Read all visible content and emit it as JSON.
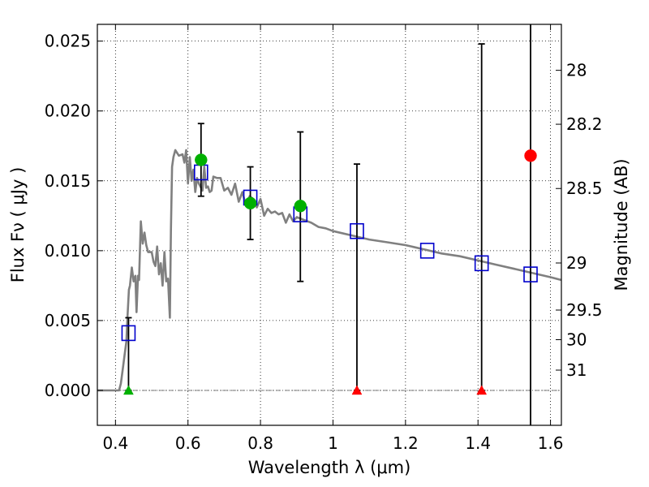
{
  "chart_data": {
    "type": "scatter",
    "xlabel": "Wavelength  λ (μm)",
    "ylabel": "Flux  Fν  ( μJy )",
    "y2label": "Magnitude (AB)",
    "xlim": [
      0.35,
      1.63
    ],
    "ylim": [
      -0.0025,
      0.0262
    ],
    "grid": true,
    "x_ticks": [
      0.4,
      0.6,
      0.8,
      1.0,
      1.2,
      1.4,
      1.6
    ],
    "x_tick_labels": [
      "0.4",
      "0.6",
      "0.8",
      "1",
      "1.2",
      "1.4",
      "1.6"
    ],
    "y_ticks": [
      0.0,
      0.005,
      0.01,
      0.015,
      0.02,
      0.025
    ],
    "y_tick_labels": [
      "0.000",
      "0.005",
      "0.010",
      "0.015",
      "0.020",
      "0.025"
    ],
    "right_ticks": [
      {
        "label": "28",
        "flux": 0.02291
      },
      {
        "label": "28.2",
        "flux": 0.01905
      },
      {
        "label": "28.5",
        "flux": 0.01445
      },
      {
        "label": "29",
        "flux": 0.00912
      },
      {
        "label": "29.5",
        "flux": 0.00575
      },
      {
        "label": "30",
        "flux": 0.00363
      },
      {
        "label": "31",
        "flux": 0.00145
      }
    ],
    "series": [
      {
        "kind": "line",
        "color": "#808080",
        "x": [
          0.35,
          0.41,
          0.415,
          0.42,
          0.425,
          0.43,
          0.433,
          0.437,
          0.44,
          0.445,
          0.45,
          0.455,
          0.458,
          0.462,
          0.465,
          0.47,
          0.475,
          0.48,
          0.485,
          0.49,
          0.5,
          0.505,
          0.51,
          0.515,
          0.52,
          0.525,
          0.53,
          0.535,
          0.54,
          0.545,
          0.55,
          0.553,
          0.556,
          0.56,
          0.565,
          0.575,
          0.585,
          0.59,
          0.595,
          0.6,
          0.605,
          0.61,
          0.615,
          0.62,
          0.625,
          0.63,
          0.64,
          0.645,
          0.65,
          0.655,
          0.66,
          0.665,
          0.67,
          0.68,
          0.69,
          0.7,
          0.71,
          0.72,
          0.73,
          0.74,
          0.75,
          0.76,
          0.77,
          0.78,
          0.79,
          0.8,
          0.81,
          0.82,
          0.83,
          0.84,
          0.85,
          0.86,
          0.87,
          0.88,
          0.89,
          0.9,
          0.92,
          0.94,
          0.96,
          0.98,
          1.0,
          1.05,
          1.1,
          1.15,
          1.2,
          1.25,
          1.3,
          1.35,
          1.4,
          1.45,
          1.5,
          1.55,
          1.6,
          1.63
        ],
        "y": [
          0.0,
          0.0,
          0.0005,
          0.0015,
          0.0025,
          0.0035,
          0.0052,
          0.0072,
          0.0075,
          0.0088,
          0.0078,
          0.0082,
          0.0056,
          0.0082,
          0.0079,
          0.0121,
          0.0105,
          0.0113,
          0.0104,
          0.0099,
          0.0099,
          0.0092,
          0.0089,
          0.0103,
          0.0083,
          0.0091,
          0.0075,
          0.0099,
          0.0078,
          0.008,
          0.0052,
          0.0115,
          0.016,
          0.0167,
          0.0172,
          0.0168,
          0.0169,
          0.0163,
          0.0172,
          0.0148,
          0.0167,
          0.015,
          0.0158,
          0.0142,
          0.0152,
          0.0148,
          0.0143,
          0.016,
          0.0145,
          0.0146,
          0.0142,
          0.0143,
          0.0153,
          0.0152,
          0.0152,
          0.0143,
          0.0145,
          0.014,
          0.0148,
          0.0135,
          0.0142,
          0.0132,
          0.0139,
          0.0137,
          0.0131,
          0.0137,
          0.0125,
          0.013,
          0.0127,
          0.0128,
          0.0126,
          0.0127,
          0.012,
          0.0126,
          0.0121,
          0.0124,
          0.0122,
          0.012,
          0.0117,
          0.0116,
          0.0114,
          0.0111,
          0.0108,
          0.0106,
          0.0104,
          0.0101,
          0.0098,
          0.0096,
          0.0093,
          0.009,
          0.0087,
          0.0084,
          0.0081,
          0.0079
        ]
      },
      {
        "kind": "open-square",
        "color": "#0000cc",
        "x": [
          0.436,
          0.636,
          0.772,
          0.91,
          1.066,
          1.26,
          1.41,
          1.545
        ],
        "y": [
          0.0041,
          0.0156,
          0.0138,
          0.0126,
          0.0114,
          0.01,
          0.0091,
          0.0083
        ]
      },
      {
        "kind": "circle",
        "color": "#00b000",
        "x": [
          0.636,
          0.772,
          0.91
        ],
        "y": [
          0.0165,
          0.0134,
          0.0132
        ]
      },
      {
        "kind": "circle",
        "color": "#ff0000",
        "x": [
          1.545
        ],
        "y": [
          0.0168
        ]
      },
      {
        "kind": "triangle",
        "color": "#00b000",
        "x": [
          0.436
        ],
        "y": [
          0.0
        ]
      },
      {
        "kind": "triangle",
        "color": "#ff0000",
        "x": [
          1.066,
          1.41
        ],
        "y": [
          0.0,
          0.0
        ]
      },
      {
        "kind": "error-bar",
        "color": "#000000",
        "x": [
          0.436,
          0.636,
          0.772,
          0.91,
          1.066,
          1.41,
          1.545
        ],
        "lo": [
          0.0,
          0.0139,
          0.0108,
          0.0078,
          0.0,
          0.0,
          -0.0025
        ],
        "hi": [
          0.0052,
          0.0191,
          0.016,
          0.0185,
          0.0162,
          0.0248,
          0.0262
        ]
      }
    ]
  }
}
